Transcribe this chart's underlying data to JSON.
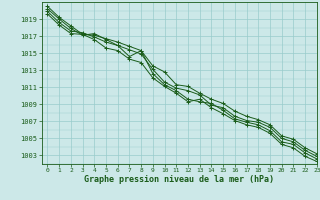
{
  "xlabel": "Graphe pression niveau de la mer (hPa)",
  "bg_color": "#cce8e8",
  "grid_color": "#99cccc",
  "line_color": "#1a5c1a",
  "marker": "+",
  "xlim": [
    -0.5,
    23
  ],
  "ylim": [
    1002,
    1021
  ],
  "yticks": [
    1003,
    1005,
    1007,
    1009,
    1011,
    1013,
    1015,
    1017,
    1019
  ],
  "xticks": [
    0,
    1,
    2,
    3,
    4,
    5,
    6,
    7,
    8,
    9,
    10,
    11,
    12,
    13,
    14,
    15,
    16,
    17,
    18,
    19,
    20,
    21,
    22,
    23
  ],
  "series": [
    [
      1020.5,
      1019.2,
      1018.2,
      1017.2,
      1017.1,
      1016.7,
      1016.3,
      1015.8,
      1015.3,
      1013.5,
      1012.8,
      1011.3,
      1011.1,
      1010.3,
      1009.6,
      1009.1,
      1008.2,
      1007.6,
      1007.2,
      1006.6,
      1005.3,
      1004.9,
      1003.9,
      1003.2
    ],
    [
      1020.2,
      1019.0,
      1017.9,
      1017.1,
      1017.3,
      1016.6,
      1015.9,
      1015.4,
      1014.9,
      1013.1,
      1011.6,
      1010.9,
      1010.6,
      1010.1,
      1008.9,
      1008.6,
      1007.6,
      1007.1,
      1006.9,
      1006.3,
      1005.0,
      1004.6,
      1003.6,
      1002.9
    ],
    [
      1019.9,
      1018.6,
      1017.6,
      1017.4,
      1016.9,
      1016.3,
      1015.9,
      1014.6,
      1015.3,
      1012.6,
      1011.3,
      1010.6,
      1009.6,
      1009.3,
      1009.1,
      1008.3,
      1007.3,
      1006.9,
      1006.6,
      1005.9,
      1004.6,
      1004.3,
      1003.3,
      1002.6
    ],
    [
      1019.6,
      1018.3,
      1017.3,
      1017.2,
      1016.6,
      1015.6,
      1015.3,
      1014.3,
      1013.9,
      1012.1,
      1011.1,
      1010.3,
      1009.3,
      1009.6,
      1008.6,
      1007.9,
      1007.1,
      1006.6,
      1006.3,
      1005.6,
      1004.3,
      1003.9,
      1002.9,
      1002.3
    ]
  ]
}
